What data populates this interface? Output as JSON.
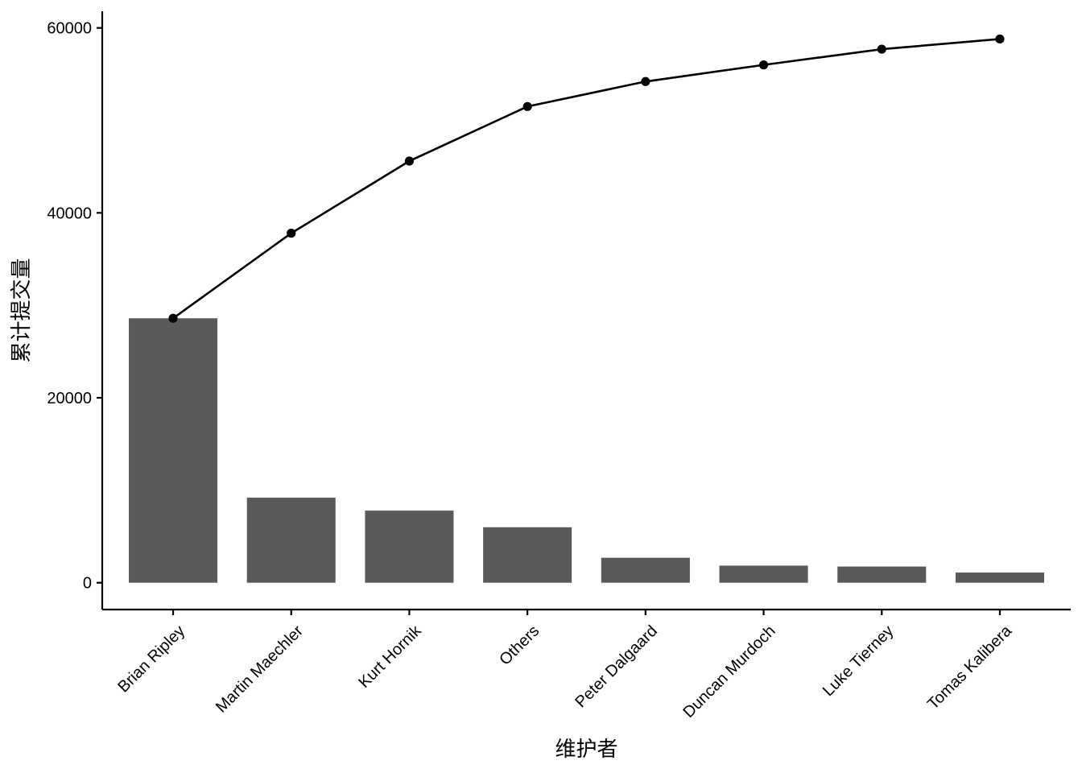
{
  "chart_data": {
    "type": "bar",
    "title": "",
    "xlabel": "维护者",
    "ylabel": "累计提交量",
    "categories": [
      "Brian Ripley",
      "Martin Maechler",
      "Kurt Hornik",
      "Others",
      "Peter Dalgaard",
      "Duncan Murdoch",
      "Luke Tierney",
      "Tomas Kalibera"
    ],
    "series": [
      {
        "type": "bar",
        "values": [
          28600,
          9200,
          7800,
          6000,
          2700,
          1850,
          1750,
          1100
        ]
      },
      {
        "type": "line",
        "values": [
          28600,
          37800,
          45600,
          51500,
          54200,
          56000,
          57700,
          58800
        ]
      }
    ],
    "ylim": [
      -2900,
      61800
    ],
    "yticks": [
      0,
      20000,
      40000,
      60000
    ],
    "ytick_labels": [
      "0",
      "20000",
      "40000",
      "60000"
    ],
    "grid": false,
    "legend": "none",
    "colors": {
      "bar": "#595959",
      "line": "#000000",
      "point": "#000000",
      "axis": "#000000"
    }
  }
}
